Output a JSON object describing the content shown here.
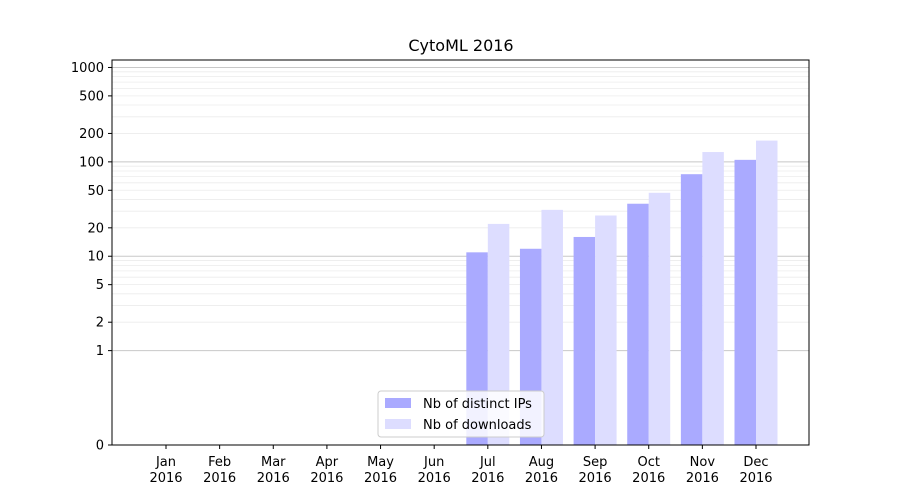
{
  "chart_data": {
    "type": "bar",
    "title": "CytoML 2016",
    "xlabel": "",
    "ylabel": "",
    "yscale": "symlog",
    "ylim": [
      0,
      1200
    ],
    "grid": "horizontal",
    "legend_position": "bottom-center",
    "categories": [
      [
        "Jan",
        "2016"
      ],
      [
        "Feb",
        "2016"
      ],
      [
        "Mar",
        "2016"
      ],
      [
        "Apr",
        "2016"
      ],
      [
        "May",
        "2016"
      ],
      [
        "Jun",
        "2016"
      ],
      [
        "Jul",
        "2016"
      ],
      [
        "Aug",
        "2016"
      ],
      [
        "Sep",
        "2016"
      ],
      [
        "Oct",
        "2016"
      ],
      [
        "Nov",
        "2016"
      ],
      [
        "Dec",
        "2016"
      ]
    ],
    "yticks": [
      "0",
      "1",
      "2",
      "5",
      "10",
      "20",
      "50",
      "100",
      "200",
      "500",
      "1000"
    ],
    "series": [
      {
        "name": "Nb of distinct IPs",
        "color": "#aaaaff",
        "values": [
          0,
          0,
          0,
          0,
          0,
          0,
          11,
          12,
          16,
          36,
          74,
          105
        ]
      },
      {
        "name": "Nb of downloads",
        "color": "#ddddff",
        "values": [
          0,
          0,
          0,
          0,
          0,
          0,
          22,
          31,
          27,
          47,
          127,
          168
        ]
      }
    ]
  }
}
